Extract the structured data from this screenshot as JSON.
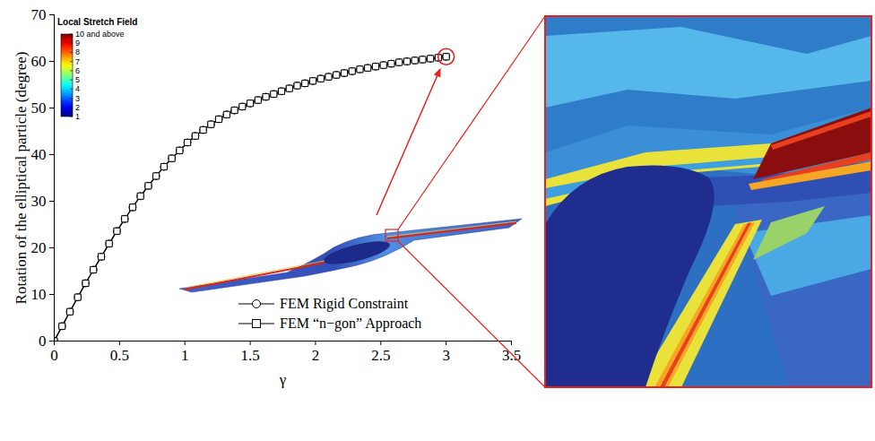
{
  "chart_data": {
    "type": "line",
    "x_label": "γ",
    "y_label": "Rotation of the elliptical particle (degree)",
    "x": [
      0,
      0.06,
      0.12,
      0.18,
      0.24,
      0.3,
      0.36,
      0.42,
      0.48,
      0.54,
      0.6,
      0.66,
      0.72,
      0.78,
      0.84,
      0.9,
      0.96,
      1.02,
      1.08,
      1.14,
      1.2,
      1.26,
      1.32,
      1.38,
      1.44,
      1.5,
      1.56,
      1.62,
      1.68,
      1.74,
      1.8,
      1.86,
      1.92,
      1.98,
      2.04,
      2.1,
      2.16,
      2.22,
      2.28,
      2.34,
      2.4,
      2.46,
      2.52,
      2.58,
      2.64,
      2.7,
      2.76,
      2.82,
      2.88,
      2.94,
      3.0
    ],
    "series": [
      {
        "name": "FEM Rigid Constraint",
        "color": "#000000",
        "marker": "circle",
        "line_style": "solid",
        "values": [
          0,
          3.2,
          6.3,
          9.4,
          12.4,
          15.3,
          18.1,
          20.9,
          23.6,
          26.2,
          28.7,
          31.1,
          33.3,
          35.4,
          37.4,
          39.2,
          40.9,
          42.6,
          44.0,
          45.3,
          46.5,
          47.6,
          48.6,
          49.5,
          50.3,
          51.0,
          51.7,
          52.4,
          53.0,
          53.6,
          54.2,
          54.8,
          55.3,
          55.8,
          56.3,
          56.7,
          57.1,
          57.5,
          57.9,
          58.3,
          58.6,
          58.9,
          59.2,
          59.5,
          59.8,
          60.0,
          60.2,
          60.4,
          60.6,
          60.8,
          61.0
        ]
      },
      {
        "name": "FEM “n−gon” Approach",
        "color": "#000000",
        "marker": "square",
        "line_style": "solid",
        "values": [
          0,
          3.2,
          6.3,
          9.4,
          12.4,
          15.3,
          18.1,
          20.9,
          23.6,
          26.2,
          28.7,
          31.1,
          33.3,
          35.4,
          37.4,
          39.2,
          40.9,
          42.6,
          44.0,
          45.3,
          46.5,
          47.6,
          48.6,
          49.5,
          50.3,
          51.0,
          51.7,
          52.4,
          53.0,
          53.6,
          54.2,
          54.8,
          55.3,
          55.8,
          56.3,
          56.7,
          57.1,
          57.5,
          57.9,
          58.3,
          58.6,
          58.9,
          59.2,
          59.5,
          59.8,
          60.0,
          60.2,
          60.4,
          60.6,
          60.8,
          61.0
        ]
      }
    ],
    "xlim": [
      0,
      3.5
    ],
    "xticks": [
      0,
      0.5,
      1,
      1.5,
      2,
      2.5,
      3,
      3.5
    ],
    "ylim": [
      0,
      70
    ],
    "yticks": [
      0,
      10,
      20,
      30,
      40,
      50,
      60,
      70
    ],
    "legend": "lower right",
    "color_bar": {
      "title": "Local Stretch Field",
      "range": [
        1,
        10
      ],
      "ticks": [
        1,
        2,
        3,
        4,
        5,
        6,
        7,
        8,
        9,
        {
          "value": 10,
          "label": "10 and above"
        }
      ]
    }
  }
}
